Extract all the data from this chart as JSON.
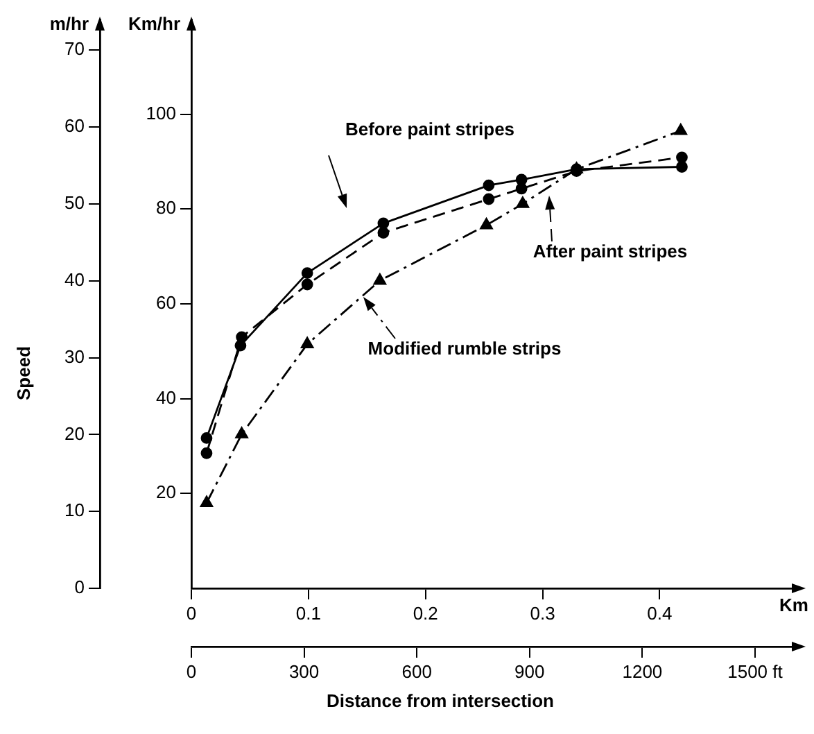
{
  "chart_data": {
    "type": "line",
    "xlabel": "Km",
    "x2label": "Distance from intersection",
    "ylabel": "m/hr",
    "y2label": "Km/hr",
    "annotations": [
      "Speed"
    ],
    "xlim": [
      0,
      0.52
    ],
    "xticks": [
      0,
      0.1,
      0.2,
      0.3,
      0.4
    ],
    "x2lim": [
      0,
      1620
    ],
    "x2ticks": [
      0,
      300,
      600,
      900,
      1200,
      {
        "value": 1500,
        "label": "1500 ft"
      }
    ],
    "ylim": [
      0,
      74
    ],
    "yticks": [
      0,
      10,
      20,
      30,
      40,
      50,
      60,
      70
    ],
    "y2lim": [
      0,
      120
    ],
    "y2ticks": [
      20,
      40,
      60,
      80,
      100
    ],
    "grid": false,
    "legend": "right",
    "series": [
      {
        "name": "Before paint stripes",
        "color": "#000000",
        "axis": "y2",
        "marker": "circle",
        "line_style": "solid",
        "x": [
          0.013,
          0.042,
          0.099,
          0.164,
          0.254,
          0.282,
          0.329,
          0.419
        ],
        "values": [
          31.7,
          51.2,
          66.5,
          77,
          85,
          86.2,
          88.4,
          88.9
        ]
      },
      {
        "name": "After paint stripes",
        "color": "#000000",
        "axis": "y2",
        "marker": "circle",
        "line_style": "dashed",
        "x": [
          0.013,
          0.043,
          0.099,
          0.164,
          0.254,
          0.282,
          0.329,
          0.419
        ],
        "values": [
          28.5,
          53,
          64.1,
          75,
          82.1,
          84.3,
          88,
          90.9
        ]
      },
      {
        "name": "Modified rumble strips",
        "color": "#000000",
        "axis": "y2",
        "marker": "triangle",
        "line_style": "dashdot",
        "x": [
          0.013,
          0.043,
          0.099,
          0.161,
          0.252,
          0.283,
          0.329,
          0.418
        ],
        "values": [
          18,
          32.5,
          51.5,
          64.9,
          76.6,
          81.1,
          88.4,
          96.5
        ]
      }
    ]
  }
}
